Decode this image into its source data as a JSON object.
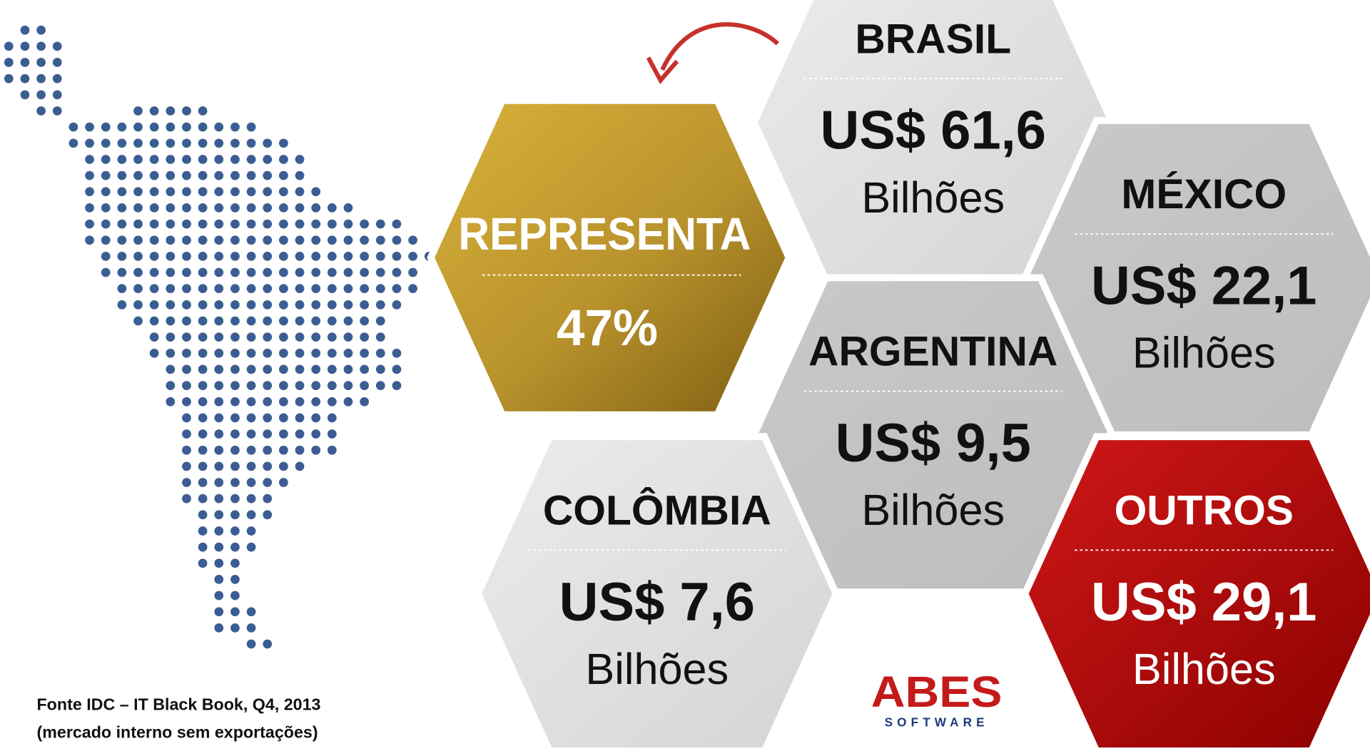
{
  "highlight": {
    "label": "REPRESENTA",
    "value": "47%"
  },
  "hexagons": [
    {
      "name": "BRASIL",
      "value": "US$ 61,6",
      "unit": "Bilhões"
    },
    {
      "name": "MÉXICO",
      "value": "US$ 22,1",
      "unit": "Bilhões"
    },
    {
      "name": "ARGENTINA",
      "value": "US$ 9,5",
      "unit": "Bilhões"
    },
    {
      "name": "COLÔMBIA",
      "value": "US$ 7,6",
      "unit": "Bilhões"
    },
    {
      "name": "OUTROS",
      "value": "US$ 29,1",
      "unit": "Bilhões"
    }
  ],
  "source": [
    "Fonte IDC – IT Black Book, Q4, 2013",
    "(mercado interno sem exportações)"
  ],
  "logo": {
    "name": "ABES",
    "sub": "SOFTWARE"
  }
}
